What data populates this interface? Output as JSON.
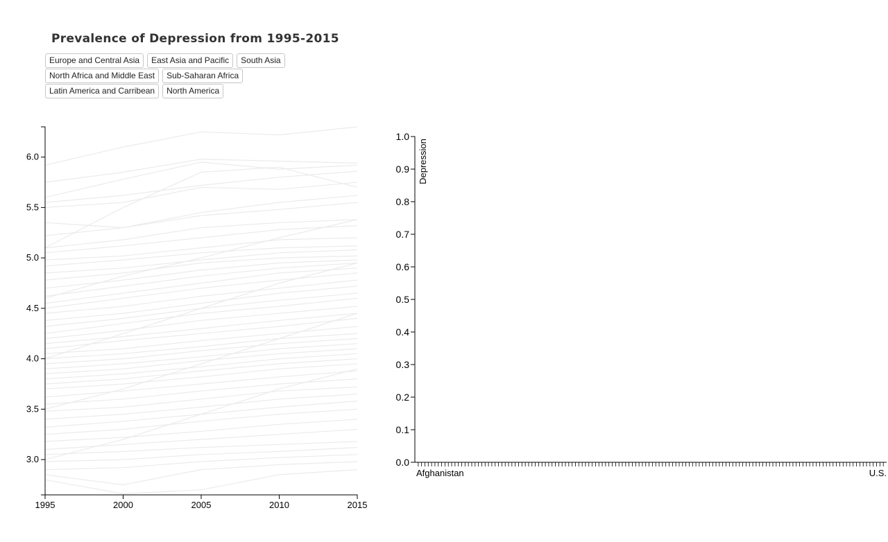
{
  "title": "Prevalence of Depression from 1995-2015",
  "regions": [
    [
      "Europe and Central Asia",
      "East Asia and Pacific",
      "South Asia"
    ],
    [
      "North Africa and Middle East",
      "Sub-Saharan Africa"
    ],
    [
      "Latin America and Carribean",
      "North America"
    ]
  ],
  "colors": {
    "line": "#ebebeb",
    "axis": "#000000",
    "title": "#333333"
  },
  "chart_data": [
    {
      "type": "line",
      "title": "Prevalence of Depression from 1995-2015",
      "x": [
        1995,
        2000,
        2005,
        2010,
        2015
      ],
      "x_ticks": [
        "1995",
        "2000",
        "2005",
        "2010",
        "2015"
      ],
      "y_ticks": [
        "3.0",
        "3.5",
        "4.0",
        "4.5",
        "5.0",
        "5.5",
        "6.0"
      ],
      "ylim": [
        2.65,
        6.3
      ],
      "xlabel": "",
      "ylabel": "",
      "series_note": "one faint grey line per country; individual countries unlabeled",
      "series": [
        {
          "values": [
            5.92,
            6.1,
            6.25,
            6.22,
            6.3
          ]
        },
        {
          "values": [
            5.75,
            5.85,
            5.98,
            5.96,
            5.94
          ]
        },
        {
          "values": [
            5.6,
            5.78,
            5.95,
            5.88,
            5.92
          ]
        },
        {
          "values": [
            5.55,
            5.62,
            5.72,
            5.8,
            5.86
          ]
        },
        {
          "values": [
            5.5,
            5.55,
            5.7,
            5.68,
            5.75
          ]
        },
        {
          "values": [
            5.35,
            5.3,
            5.45,
            5.55,
            5.62
          ]
        },
        {
          "values": [
            5.22,
            5.3,
            5.42,
            5.48,
            5.55
          ]
        },
        {
          "values": [
            5.1,
            5.18,
            5.3,
            5.35,
            5.38
          ]
        },
        {
          "values": [
            5.05,
            5.12,
            5.2,
            5.28,
            5.32
          ]
        },
        {
          "values": [
            4.98,
            5.02,
            5.1,
            5.18,
            5.2
          ]
        },
        {
          "values": [
            4.92,
            4.98,
            5.05,
            5.1,
            5.12
          ]
        },
        {
          "values": [
            4.85,
            4.9,
            4.98,
            5.05,
            5.08
          ]
        },
        {
          "values": [
            4.78,
            4.85,
            4.95,
            5.0,
            5.02
          ]
        },
        {
          "values": [
            4.7,
            4.78,
            4.88,
            4.95,
            4.98
          ]
        },
        {
          "values": [
            4.62,
            4.72,
            4.82,
            4.9,
            4.95
          ]
        },
        {
          "values": [
            4.55,
            4.65,
            4.75,
            4.85,
            4.9
          ]
        },
        {
          "values": [
            4.5,
            4.6,
            4.7,
            4.78,
            4.85
          ]
        },
        {
          "values": [
            4.45,
            4.52,
            4.62,
            4.7,
            4.78
          ]
        },
        {
          "values": [
            4.38,
            4.45,
            4.55,
            4.65,
            4.72
          ]
        },
        {
          "values": [
            4.32,
            4.4,
            4.5,
            4.58,
            4.65
          ]
        },
        {
          "values": [
            4.25,
            4.35,
            4.45,
            4.52,
            4.6
          ]
        },
        {
          "values": [
            4.2,
            4.28,
            4.38,
            4.45,
            4.52
          ]
        },
        {
          "values": [
            4.15,
            4.22,
            4.3,
            4.38,
            4.45
          ]
        },
        {
          "values": [
            4.1,
            4.18,
            4.25,
            4.32,
            4.4
          ]
        },
        {
          "values": [
            4.05,
            4.1,
            4.18,
            4.25,
            4.32
          ]
        },
        {
          "values": [
            4.0,
            4.05,
            4.12,
            4.2,
            4.25
          ]
        },
        {
          "values": [
            3.95,
            4.0,
            4.08,
            4.15,
            4.2
          ]
        },
        {
          "values": [
            3.9,
            3.95,
            4.02,
            4.1,
            4.15
          ]
        },
        {
          "values": [
            3.85,
            3.9,
            3.98,
            4.05,
            4.1
          ]
        },
        {
          "values": [
            3.8,
            3.85,
            3.92,
            4.0,
            4.05
          ]
        },
        {
          "values": [
            3.75,
            3.8,
            3.88,
            3.95,
            4.0
          ]
        },
        {
          "values": [
            3.7,
            3.75,
            3.82,
            3.9,
            3.95
          ]
        },
        {
          "values": [
            3.62,
            3.68,
            3.75,
            3.82,
            3.88
          ]
        },
        {
          "values": [
            3.55,
            3.6,
            3.68,
            3.75,
            3.8
          ]
        },
        {
          "values": [
            3.48,
            3.52,
            3.6,
            3.68,
            3.72
          ]
        },
        {
          "values": [
            3.4,
            3.45,
            3.52,
            3.6,
            3.65
          ]
        },
        {
          "values": [
            3.32,
            3.38,
            3.45,
            3.52,
            3.58
          ]
        },
        {
          "values": [
            3.25,
            3.3,
            3.38,
            3.45,
            3.5
          ]
        },
        {
          "values": [
            3.18,
            3.22,
            3.28,
            3.35,
            3.4
          ]
        },
        {
          "values": [
            3.1,
            3.15,
            3.2,
            3.25,
            3.3
          ]
        },
        {
          "values": [
            3.05,
            3.08,
            3.12,
            3.15,
            3.18
          ]
        },
        {
          "values": [
            2.98,
            3.0,
            3.05,
            3.08,
            3.12
          ]
        },
        {
          "values": [
            2.9,
            2.92,
            2.98,
            3.02,
            3.05
          ]
        },
        {
          "values": [
            2.85,
            2.75,
            2.9,
            2.95,
            2.98
          ]
        },
        {
          "values": [
            2.8,
            2.66,
            2.7,
            2.85,
            2.9
          ]
        },
        {
          "values": [
            4.6,
            4.82,
            5.0,
            5.2,
            5.38
          ]
        },
        {
          "values": [
            4.0,
            4.25,
            4.5,
            4.75,
            4.95
          ]
        },
        {
          "values": [
            3.5,
            3.7,
            3.95,
            4.2,
            4.45
          ]
        },
        {
          "values": [
            5.1,
            5.5,
            5.85,
            5.9,
            5.7
          ]
        },
        {
          "values": [
            3.0,
            3.2,
            3.45,
            3.7,
            3.9
          ]
        }
      ]
    },
    {
      "type": "bar",
      "title": "",
      "ylabel": "Depression",
      "ylim": [
        0,
        1
      ],
      "y_ticks": [
        "0.0",
        "0.1",
        "0.2",
        "0.3",
        "0.4",
        "0.5",
        "0.6",
        "0.7",
        "0.8",
        "0.9",
        "1.0"
      ],
      "x_first_label": "Afghanistan",
      "x_last_label": "U.S.",
      "category_count": 140,
      "values_note": "no bars rendered; all values empty"
    }
  ]
}
